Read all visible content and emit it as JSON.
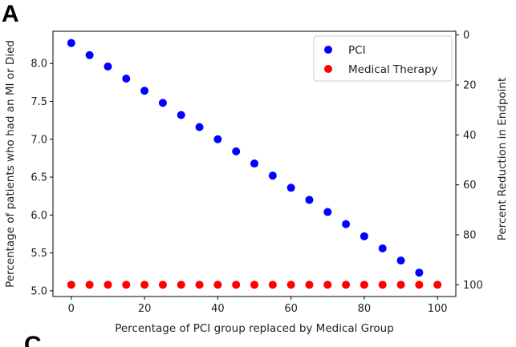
{
  "panel_labels": {
    "top": "A",
    "bottom": "C"
  },
  "chart_data": {
    "type": "scatter",
    "x": [
      0,
      5,
      10,
      15,
      20,
      25,
      30,
      35,
      40,
      45,
      50,
      55,
      60,
      65,
      70,
      75,
      80,
      85,
      90,
      95,
      100
    ],
    "series": [
      {
        "name": "PCI",
        "color": "#0000ff",
        "axis": "left",
        "values": [
          8.27,
          8.11,
          7.96,
          7.8,
          7.64,
          7.48,
          7.32,
          7.16,
          7.0,
          6.84,
          6.68,
          6.52,
          6.36,
          6.2,
          6.04,
          5.88,
          5.72,
          5.56,
          5.4,
          5.24,
          null
        ]
      },
      {
        "name": "Medical Therapy",
        "color": "#ff0000",
        "axis": "left",
        "values": [
          5.08,
          5.08,
          5.08,
          5.08,
          5.08,
          5.08,
          5.08,
          5.08,
          5.08,
          5.08,
          5.08,
          5.08,
          5.08,
          5.08,
          5.08,
          5.08,
          5.08,
          5.08,
          5.08,
          5.08,
          5.08
        ]
      }
    ],
    "xlabel": "Percentage of PCI group replaced by Medical Group",
    "ylabel": "Percentage of patients who had an MI or Died",
    "y2label": "Percent Reduction in Endpoint",
    "xlim": [
      -5,
      105
    ],
    "ylim": [
      4.925,
      8.425
    ],
    "y2lim": [
      104.7,
      -1.5
    ],
    "xticks": [
      0,
      20,
      40,
      60,
      80,
      100
    ],
    "yticks": [
      5.0,
      5.5,
      6.0,
      6.5,
      7.0,
      7.5,
      8.0
    ],
    "ytick_labels": [
      "5.0",
      "5.5",
      "6.0",
      "6.5",
      "7.0",
      "7.5",
      "8.0"
    ],
    "y2ticks": [
      0,
      20,
      40,
      60,
      80,
      100
    ],
    "grid": false,
    "legend": "top-right"
  }
}
